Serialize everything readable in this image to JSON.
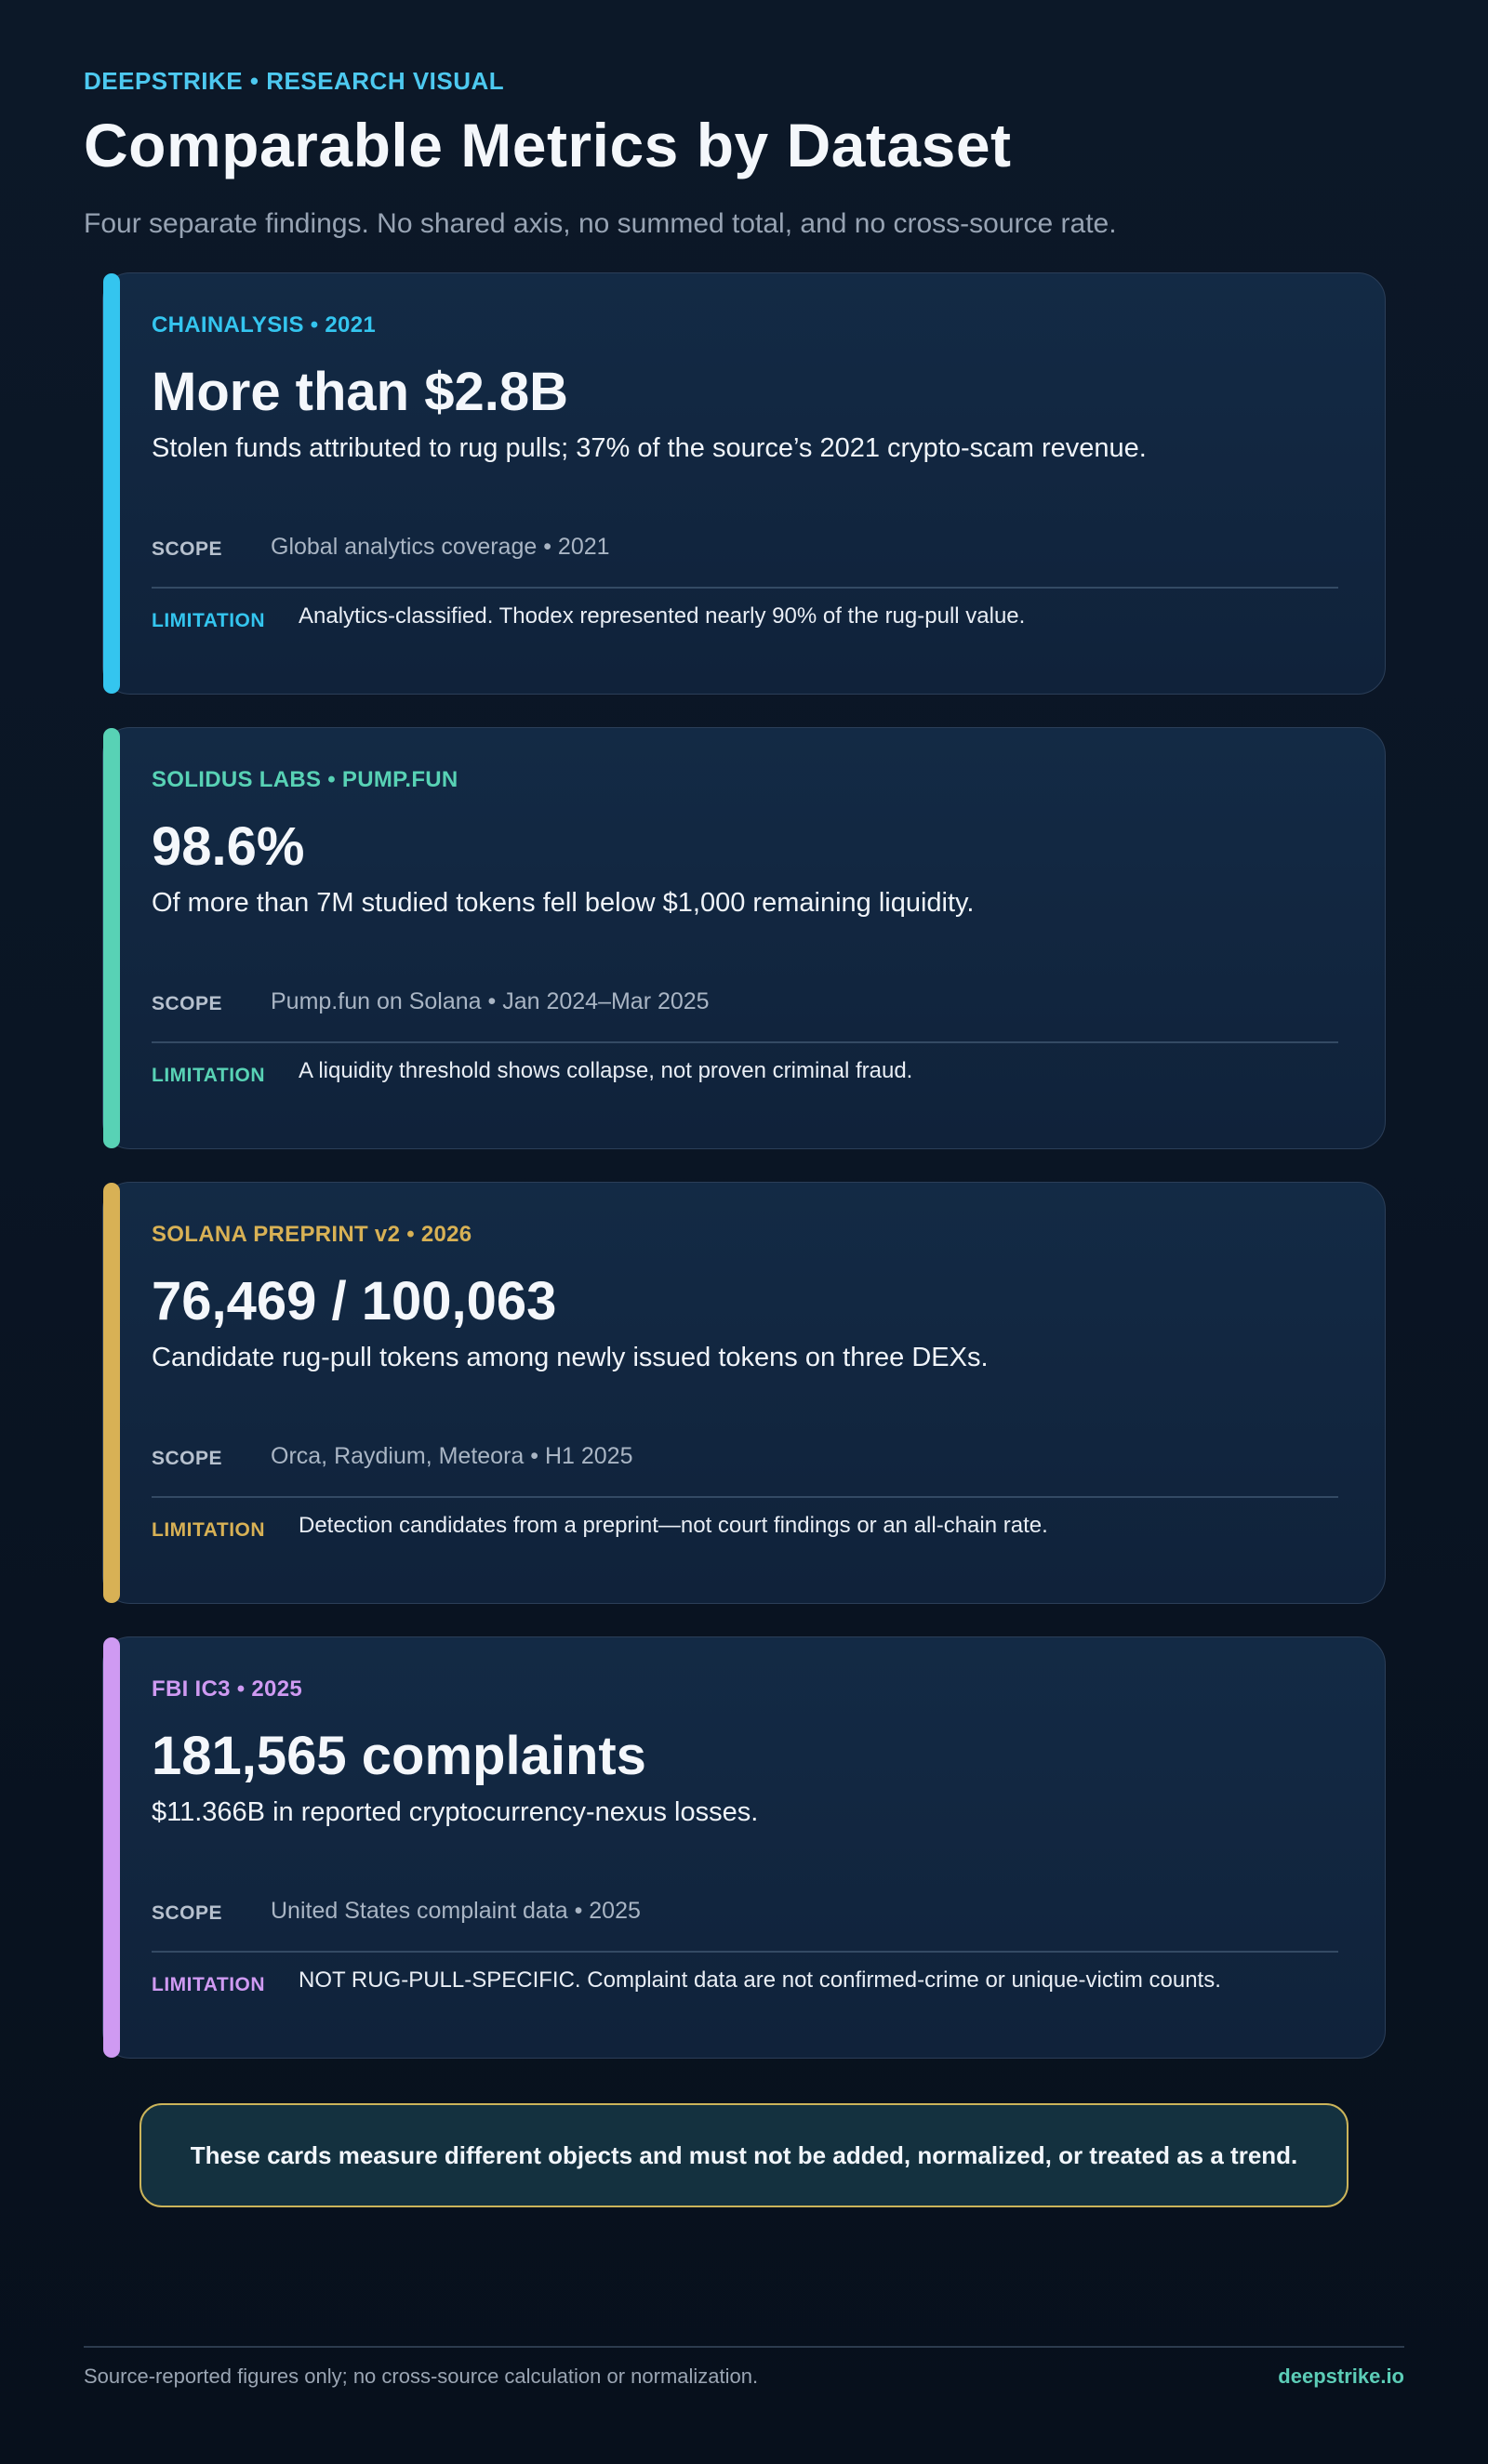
{
  "header": {
    "eyebrow": "DEEPSTRIKE • RESEARCH VISUAL",
    "title": "Comparable Metrics by Dataset",
    "subtitle": "Four separate findings. No shared axis, no summed total, and no cross-source rate."
  },
  "cards": [
    {
      "accent_color": "#34c5ef",
      "source": "CHAINALYSIS • 2021",
      "headline": "More than $2.8B",
      "description": "Stolen funds attributed to rug pulls; 37% of the source’s 2021 crypto-scam revenue.",
      "scope_label": "SCOPE",
      "scope_value": "Global analytics coverage • 2021",
      "limitation_label": "LIMITATION",
      "limitation_value": "Analytics-classified. Thodex represented nearly 90% of the rug-pull value."
    },
    {
      "accent_color": "#58d2b5",
      "source": "SOLIDUS LABS • PUMP.FUN",
      "headline": "98.6%",
      "description": "Of more than 7M studied tokens fell below $1,000 remaining liquidity.",
      "scope_label": "SCOPE",
      "scope_value": "Pump.fun on Solana • Jan 2024–Mar 2025",
      "limitation_label": "LIMITATION",
      "limitation_value": "A liquidity threshold shows collapse, not proven criminal fraud."
    },
    {
      "accent_color": "#d8b155",
      "source": "SOLANA PREPRINT v2 • 2026",
      "headline": "76,469 / 100,063",
      "description": "Candidate rug-pull tokens among newly issued tokens on three DEXs.",
      "scope_label": "SCOPE",
      "scope_value": "Orca, Raydium, Meteora • H1 2025",
      "limitation_label": "LIMITATION",
      "limitation_value": "Detection candidates from a preprint—not court findings or an all-chain rate."
    },
    {
      "accent_color": "#cf9af2",
      "source": "FBI IC3 • 2025",
      "headline": "181,565 complaints",
      "description": "$11.366B in reported cryptocurrency-nexus losses.",
      "scope_label": "SCOPE",
      "scope_value": "United States complaint data • 2025",
      "limitation_label": "LIMITATION",
      "limitation_value": "NOT RUG-PULL-SPECIFIC. Complaint data are not confirmed-crime or unique-victim counts."
    }
  ],
  "notice": {
    "text": "These cards measure different objects and must not be added, normalized, or treated as a trend."
  },
  "footer": {
    "note": "Source-reported figures only; no cross-source calculation or normalization.",
    "brand": "deepstrike.io"
  }
}
